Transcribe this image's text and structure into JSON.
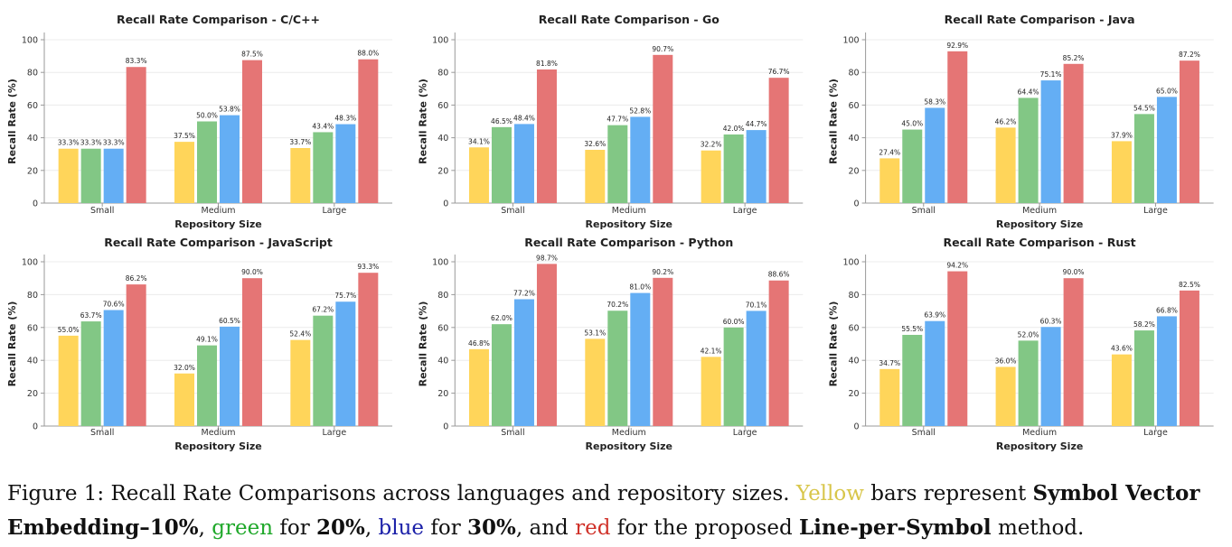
{
  "figure": {
    "caption": {
      "prefix": "Figure 1:  Recall Rate Comparisons across languages and repository sizes.",
      "yellow_word": "Yellow",
      "part1": " bars represent ",
      "bold1": "Symbol Vector Embedding–10%",
      "part2": ", ",
      "green_word": "green",
      "part3": " for ",
      "bold2": "20%",
      "part4": ", ",
      "blue_word": "blue",
      "part5": " for ",
      "bold3": "30%",
      "part6": ", and ",
      "red_word": "red",
      "part7": " for the proposed ",
      "bold4": "Line-per-Symbol",
      "part8": " method."
    }
  },
  "colors": {
    "yellow": "#ffd55a",
    "green": "#82c785",
    "blue": "#64aef4",
    "red": "#e57575",
    "grid": "#ececec",
    "axis": "#999999"
  },
  "chart_data": [
    {
      "type": "bar",
      "title": "Recall Rate Comparison - C/C++",
      "xlabel": "Repository Size",
      "ylabel": "Recall Rate (%)",
      "ylim": [
        0,
        100
      ],
      "yticks": [
        0,
        20,
        40,
        60,
        80,
        100
      ],
      "grid": true,
      "categories": [
        "Small",
        "Medium",
        "Large"
      ],
      "series": [
        {
          "color": "yellow",
          "values": [
            33.3,
            37.5,
            33.7
          ]
        },
        {
          "color": "green",
          "values": [
            33.3,
            50.0,
            43.4
          ]
        },
        {
          "color": "blue",
          "values": [
            33.3,
            53.8,
            48.3
          ]
        },
        {
          "color": "red",
          "values": [
            83.3,
            87.5,
            88.0
          ]
        }
      ]
    },
    {
      "type": "bar",
      "title": "Recall Rate Comparison - Go",
      "xlabel": "Repository Size",
      "ylabel": "Recall Rate (%)",
      "ylim": [
        0,
        100
      ],
      "yticks": [
        0,
        20,
        40,
        60,
        80,
        100
      ],
      "grid": true,
      "categories": [
        "Small",
        "Medium",
        "Large"
      ],
      "series": [
        {
          "color": "yellow",
          "values": [
            34.1,
            32.6,
            32.2
          ]
        },
        {
          "color": "green",
          "values": [
            46.5,
            47.7,
            42.0
          ]
        },
        {
          "color": "blue",
          "values": [
            48.4,
            52.8,
            44.7
          ]
        },
        {
          "color": "red",
          "values": [
            81.8,
            90.7,
            76.7
          ]
        }
      ]
    },
    {
      "type": "bar",
      "title": "Recall Rate Comparison - Java",
      "xlabel": "Repository Size",
      "ylabel": "Recall Rate (%)",
      "ylim": [
        0,
        100
      ],
      "yticks": [
        0,
        20,
        40,
        60,
        80,
        100
      ],
      "grid": true,
      "categories": [
        "Small",
        "Medium",
        "Large"
      ],
      "series": [
        {
          "color": "yellow",
          "values": [
            27.4,
            46.2,
            37.9
          ]
        },
        {
          "color": "green",
          "values": [
            45.0,
            64.4,
            54.5
          ]
        },
        {
          "color": "blue",
          "values": [
            58.3,
            75.1,
            65.0
          ]
        },
        {
          "color": "red",
          "values": [
            92.9,
            85.2,
            87.2
          ]
        }
      ]
    },
    {
      "type": "bar",
      "title": "Recall Rate Comparison - JavaScript",
      "xlabel": "Repository Size",
      "ylabel": "Recall Rate (%)",
      "ylim": [
        0,
        100
      ],
      "yticks": [
        0,
        20,
        40,
        60,
        80,
        100
      ],
      "grid": true,
      "categories": [
        "Small",
        "Medium",
        "Large"
      ],
      "series": [
        {
          "color": "yellow",
          "values": [
            55.0,
            32.0,
            52.4
          ]
        },
        {
          "color": "green",
          "values": [
            63.7,
            49.1,
            67.2
          ]
        },
        {
          "color": "blue",
          "values": [
            70.6,
            60.5,
            75.7
          ]
        },
        {
          "color": "red",
          "values": [
            86.2,
            90.0,
            93.3
          ]
        }
      ]
    },
    {
      "type": "bar",
      "title": "Recall Rate Comparison - Python",
      "xlabel": "Repository Size",
      "ylabel": "Recall Rate (%)",
      "ylim": [
        0,
        100
      ],
      "yticks": [
        0,
        20,
        40,
        60,
        80,
        100
      ],
      "grid": true,
      "categories": [
        "Small",
        "Medium",
        "Large"
      ],
      "series": [
        {
          "color": "yellow",
          "values": [
            46.8,
            53.1,
            42.1
          ]
        },
        {
          "color": "green",
          "values": [
            62.0,
            70.2,
            60.0
          ]
        },
        {
          "color": "blue",
          "values": [
            77.2,
            81.0,
            70.1
          ]
        },
        {
          "color": "red",
          "values": [
            98.7,
            90.2,
            88.6
          ]
        }
      ]
    },
    {
      "type": "bar",
      "title": "Recall Rate Comparison - Rust",
      "xlabel": "Repository Size",
      "ylabel": "Recall Rate (%)",
      "ylim": [
        0,
        100
      ],
      "yticks": [
        0,
        20,
        40,
        60,
        80,
        100
      ],
      "grid": true,
      "categories": [
        "Small",
        "Medium",
        "Large"
      ],
      "series": [
        {
          "color": "yellow",
          "values": [
            34.7,
            36.0,
            43.6
          ]
        },
        {
          "color": "green",
          "values": [
            55.5,
            52.0,
            58.2
          ]
        },
        {
          "color": "blue",
          "values": [
            63.9,
            60.3,
            66.8
          ]
        },
        {
          "color": "red",
          "values": [
            94.2,
            90.0,
            82.5
          ]
        }
      ]
    }
  ]
}
